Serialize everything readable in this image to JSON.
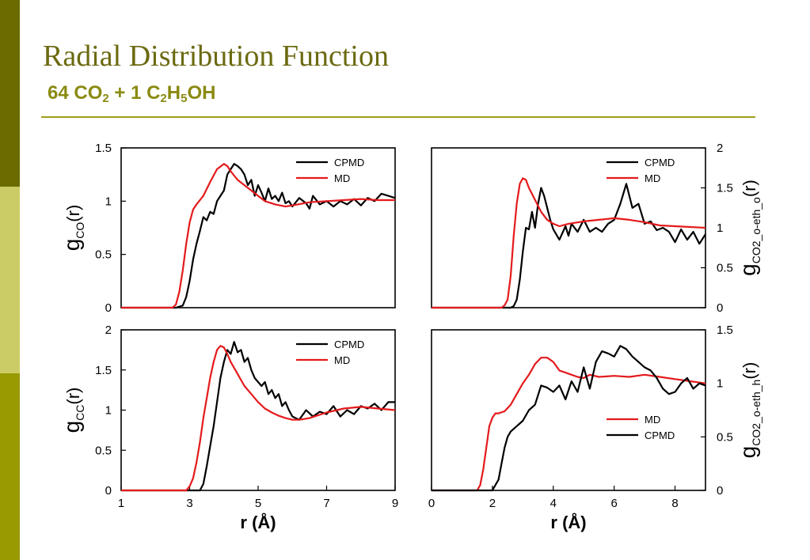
{
  "slide": {
    "title": "Radial Distribution Function",
    "subtitle_parts": [
      "64 CO",
      "2",
      " + 1 C",
      "2",
      "H",
      "5",
      "OH"
    ],
    "colors": {
      "title": "#6b6a10",
      "subtitle": "#8a8a12",
      "rule": "#9e9e1a",
      "sidebar": [
        "#6b6b00",
        "#cccc66",
        "#999900"
      ]
    }
  },
  "chart_data": [
    {
      "type": "line",
      "position": "top-left",
      "ylabel": "g",
      "ylabel_sub": "CO",
      "ylabel_tail": "(r)",
      "xlim": [
        1,
        9
      ],
      "ylim": [
        0,
        1.5
      ],
      "y_ticks": [
        "0",
        "0.5",
        "1",
        "1.5"
      ],
      "legend": [
        "CPMD",
        "MD"
      ],
      "legend_placement": "top-right",
      "series": [
        {
          "name": "CPMD",
          "color": "#000000",
          "x": [
            1.0,
            2.6,
            2.8,
            2.9,
            3.0,
            3.1,
            3.2,
            3.3,
            3.4,
            3.5,
            3.6,
            3.7,
            3.8,
            3.9,
            4.0,
            4.1,
            4.2,
            4.3,
            4.4,
            4.5,
            4.6,
            4.7,
            4.8,
            4.9,
            5.0,
            5.1,
            5.2,
            5.3,
            5.4,
            5.5,
            5.6,
            5.7,
            5.8,
            5.9,
            6.0,
            6.2,
            6.4,
            6.5,
            6.6,
            6.8,
            7.0,
            7.2,
            7.4,
            7.6,
            7.8,
            8.0,
            8.2,
            8.4,
            8.6,
            8.8,
            9.0
          ],
          "y": [
            0,
            0,
            0.02,
            0.1,
            0.25,
            0.45,
            0.6,
            0.72,
            0.85,
            0.82,
            0.9,
            0.88,
            1.0,
            1.05,
            1.1,
            1.25,
            1.3,
            1.35,
            1.33,
            1.3,
            1.25,
            1.15,
            1.2,
            1.05,
            1.15,
            1.08,
            1.0,
            1.12,
            1.02,
            1.05,
            1.0,
            1.08,
            0.98,
            1.0,
            0.95,
            1.03,
            0.98,
            0.93,
            1.05,
            0.97,
            1.0,
            0.95,
            1.0,
            0.97,
            1.02,
            0.96,
            1.03,
            1.0,
            1.07,
            1.05,
            1.03
          ]
        },
        {
          "name": "MD",
          "color": "#e41a1c",
          "x": [
            1.0,
            2.5,
            2.6,
            2.7,
            2.8,
            2.9,
            3.0,
            3.1,
            3.2,
            3.4,
            3.6,
            3.8,
            4.0,
            4.1,
            4.2,
            4.3,
            4.4,
            4.6,
            4.8,
            5.0,
            5.2,
            5.5,
            5.8,
            6.0,
            6.5,
            7.0,
            7.5,
            8.0,
            8.5,
            9.0
          ],
          "y": [
            0,
            0,
            0.03,
            0.15,
            0.35,
            0.6,
            0.8,
            0.92,
            0.97,
            1.05,
            1.18,
            1.3,
            1.35,
            1.33,
            1.28,
            1.24,
            1.2,
            1.15,
            1.1,
            1.05,
            1.0,
            0.97,
            0.95,
            0.96,
            0.99,
            1.0,
            1.01,
            1.02,
            1.01,
            1.01
          ]
        }
      ]
    },
    {
      "type": "line",
      "position": "top-right",
      "ylabel": "g",
      "ylabel_sub": "CO2_o-eth_o",
      "ylabel_tail": "(r)",
      "xlim": [
        0,
        9
      ],
      "ylim": [
        0,
        2
      ],
      "y_ticks": [
        "0",
        "0.5",
        "1",
        "1.5",
        "2"
      ],
      "legend": [
        "CPMD",
        "MD"
      ],
      "legend_placement": "top-right",
      "series": [
        {
          "name": "CPMD",
          "color": "#000000",
          "x": [
            0,
            2.6,
            2.7,
            2.8,
            2.9,
            3.0,
            3.1,
            3.2,
            3.3,
            3.4,
            3.5,
            3.6,
            3.7,
            3.8,
            3.9,
            4.0,
            4.2,
            4.4,
            4.5,
            4.6,
            4.8,
            5.0,
            5.2,
            5.4,
            5.6,
            5.8,
            6.0,
            6.2,
            6.4,
            6.6,
            6.8,
            7.0,
            7.2,
            7.4,
            7.6,
            7.8,
            8.0,
            8.2,
            8.4,
            8.6,
            8.8,
            9.0
          ],
          "y": [
            0,
            0,
            0.02,
            0.1,
            0.35,
            0.7,
            1.0,
            0.98,
            1.2,
            1.0,
            1.3,
            1.5,
            1.4,
            1.25,
            1.1,
            0.98,
            0.85,
            1.02,
            0.9,
            1.05,
            0.95,
            1.1,
            0.95,
            1.0,
            0.95,
            1.05,
            1.1,
            1.3,
            1.55,
            1.25,
            1.3,
            1.05,
            1.08,
            0.97,
            1.0,
            0.95,
            0.82,
            0.98,
            0.85,
            0.95,
            0.8,
            0.92
          ]
        },
        {
          "name": "MD",
          "color": "#e41a1c",
          "x": [
            0,
            2.3,
            2.4,
            2.5,
            2.6,
            2.7,
            2.8,
            2.9,
            3.0,
            3.1,
            3.2,
            3.4,
            3.6,
            3.8,
            4.0,
            4.2,
            4.5,
            5.0,
            5.5,
            6.0,
            6.5,
            7.0,
            7.5,
            8.0,
            8.5,
            9.0
          ],
          "y": [
            0,
            0,
            0.03,
            0.1,
            0.4,
            0.9,
            1.3,
            1.55,
            1.62,
            1.6,
            1.5,
            1.35,
            1.2,
            1.1,
            1.05,
            1.02,
            1.05,
            1.08,
            1.1,
            1.12,
            1.1,
            1.07,
            1.03,
            1.02,
            1.01,
            1.0
          ]
        }
      ]
    },
    {
      "type": "line",
      "position": "bottom-left",
      "ylabel": "g",
      "ylabel_sub": "CC",
      "ylabel_tail": "(r)",
      "xlabel": "r (Å)",
      "xlim": [
        1,
        9
      ],
      "ylim": [
        0,
        2
      ],
      "x_ticks": [
        "1",
        "3",
        "5",
        "7",
        "9"
      ],
      "y_ticks": [
        "0",
        "0.5",
        "1",
        "1.5",
        "2"
      ],
      "legend": [
        "CPMD",
        "MD"
      ],
      "legend_placement": "top-right",
      "series": [
        {
          "name": "CPMD",
          "color": "#000000",
          "x": [
            1.0,
            3.3,
            3.4,
            3.5,
            3.6,
            3.7,
            3.8,
            3.9,
            4.0,
            4.1,
            4.2,
            4.3,
            4.4,
            4.5,
            4.6,
            4.7,
            4.8,
            4.9,
            5.0,
            5.1,
            5.2,
            5.3,
            5.4,
            5.5,
            5.6,
            5.7,
            5.8,
            5.9,
            6.0,
            6.2,
            6.4,
            6.6,
            6.8,
            7.0,
            7.2,
            7.4,
            7.6,
            7.8,
            8.0,
            8.2,
            8.4,
            8.6,
            8.8,
            9.0
          ],
          "y": [
            0,
            0,
            0.08,
            0.3,
            0.55,
            0.8,
            1.1,
            1.4,
            1.6,
            1.75,
            1.7,
            1.85,
            1.72,
            1.75,
            1.6,
            1.65,
            1.5,
            1.4,
            1.35,
            1.3,
            1.35,
            1.2,
            1.25,
            1.15,
            1.2,
            1.05,
            1.1,
            1.0,
            0.92,
            0.88,
            1.0,
            0.92,
            0.98,
            0.95,
            1.05,
            0.92,
            1.0,
            0.95,
            1.05,
            1.02,
            1.08,
            1.0,
            1.1,
            1.1
          ]
        },
        {
          "name": "MD",
          "color": "#e41a1c",
          "x": [
            1.0,
            2.9,
            3.0,
            3.1,
            3.2,
            3.3,
            3.4,
            3.5,
            3.6,
            3.7,
            3.8,
            3.9,
            4.0,
            4.1,
            4.2,
            4.4,
            4.6,
            4.8,
            5.0,
            5.2,
            5.4,
            5.6,
            5.8,
            6.0,
            6.2,
            6.5,
            7.0,
            7.5,
            8.0,
            8.5,
            9.0
          ],
          "y": [
            0,
            0,
            0.05,
            0.15,
            0.35,
            0.6,
            0.9,
            1.15,
            1.4,
            1.6,
            1.75,
            1.8,
            1.78,
            1.7,
            1.6,
            1.45,
            1.3,
            1.2,
            1.1,
            1.02,
            0.97,
            0.93,
            0.9,
            0.88,
            0.88,
            0.9,
            0.97,
            1.02,
            1.04,
            1.02,
            1.0
          ]
        }
      ]
    },
    {
      "type": "line",
      "position": "bottom-right",
      "ylabel": "g",
      "ylabel_sub": "CO2_o-eth_h",
      "ylabel_tail": "(r)",
      "xlabel": "r (Å)",
      "xlim": [
        0,
        9
      ],
      "ylim": [
        0,
        1.5
      ],
      "x_ticks": [
        "0",
        "2",
        "4",
        "6",
        "8"
      ],
      "y_ticks": [
        "0",
        "0.5",
        "1",
        "1.5"
      ],
      "legend": [
        "MD",
        "CPMD"
      ],
      "legend_placement": "bottom-right",
      "series": [
        {
          "name": "MD",
          "color": "#e41a1c",
          "x": [
            0,
            1.5,
            1.6,
            1.7,
            1.8,
            1.9,
            2.0,
            2.1,
            2.2,
            2.4,
            2.6,
            2.8,
            3.0,
            3.2,
            3.4,
            3.6,
            3.8,
            4.0,
            4.2,
            4.4,
            4.6,
            4.8,
            5.0,
            5.2,
            5.5,
            6.0,
            6.5,
            7.0,
            7.5,
            8.0,
            8.5,
            9.0
          ],
          "y": [
            0,
            0,
            0.05,
            0.2,
            0.4,
            0.6,
            0.68,
            0.72,
            0.72,
            0.74,
            0.8,
            0.9,
            1.0,
            1.08,
            1.18,
            1.24,
            1.24,
            1.2,
            1.12,
            1.1,
            1.08,
            1.06,
            1.05,
            1.08,
            1.06,
            1.07,
            1.06,
            1.08,
            1.06,
            1.04,
            1.02,
            1.0
          ]
        },
        {
          "name": "CPMD",
          "color": "#000000",
          "x": [
            0,
            2.0,
            2.1,
            2.2,
            2.3,
            2.4,
            2.5,
            2.6,
            2.8,
            3.0,
            3.2,
            3.4,
            3.6,
            3.8,
            4.0,
            4.2,
            4.4,
            4.6,
            4.8,
            5.0,
            5.2,
            5.4,
            5.6,
            5.8,
            6.0,
            6.2,
            6.4,
            6.6,
            6.8,
            7.0,
            7.2,
            7.4,
            7.6,
            7.8,
            8.0,
            8.2,
            8.4,
            8.6,
            8.8,
            9.0
          ],
          "y": [
            0,
            0,
            0.05,
            0.1,
            0.25,
            0.4,
            0.5,
            0.55,
            0.6,
            0.65,
            0.75,
            0.8,
            0.98,
            0.96,
            0.92,
            0.98,
            0.85,
            1.02,
            0.92,
            1.15,
            0.95,
            1.2,
            1.3,
            1.28,
            1.25,
            1.35,
            1.32,
            1.25,
            1.2,
            1.15,
            1.12,
            1.05,
            0.95,
            0.9,
            0.92,
            1.0,
            1.05,
            0.95,
            1.0,
            0.98
          ]
        }
      ]
    }
  ]
}
